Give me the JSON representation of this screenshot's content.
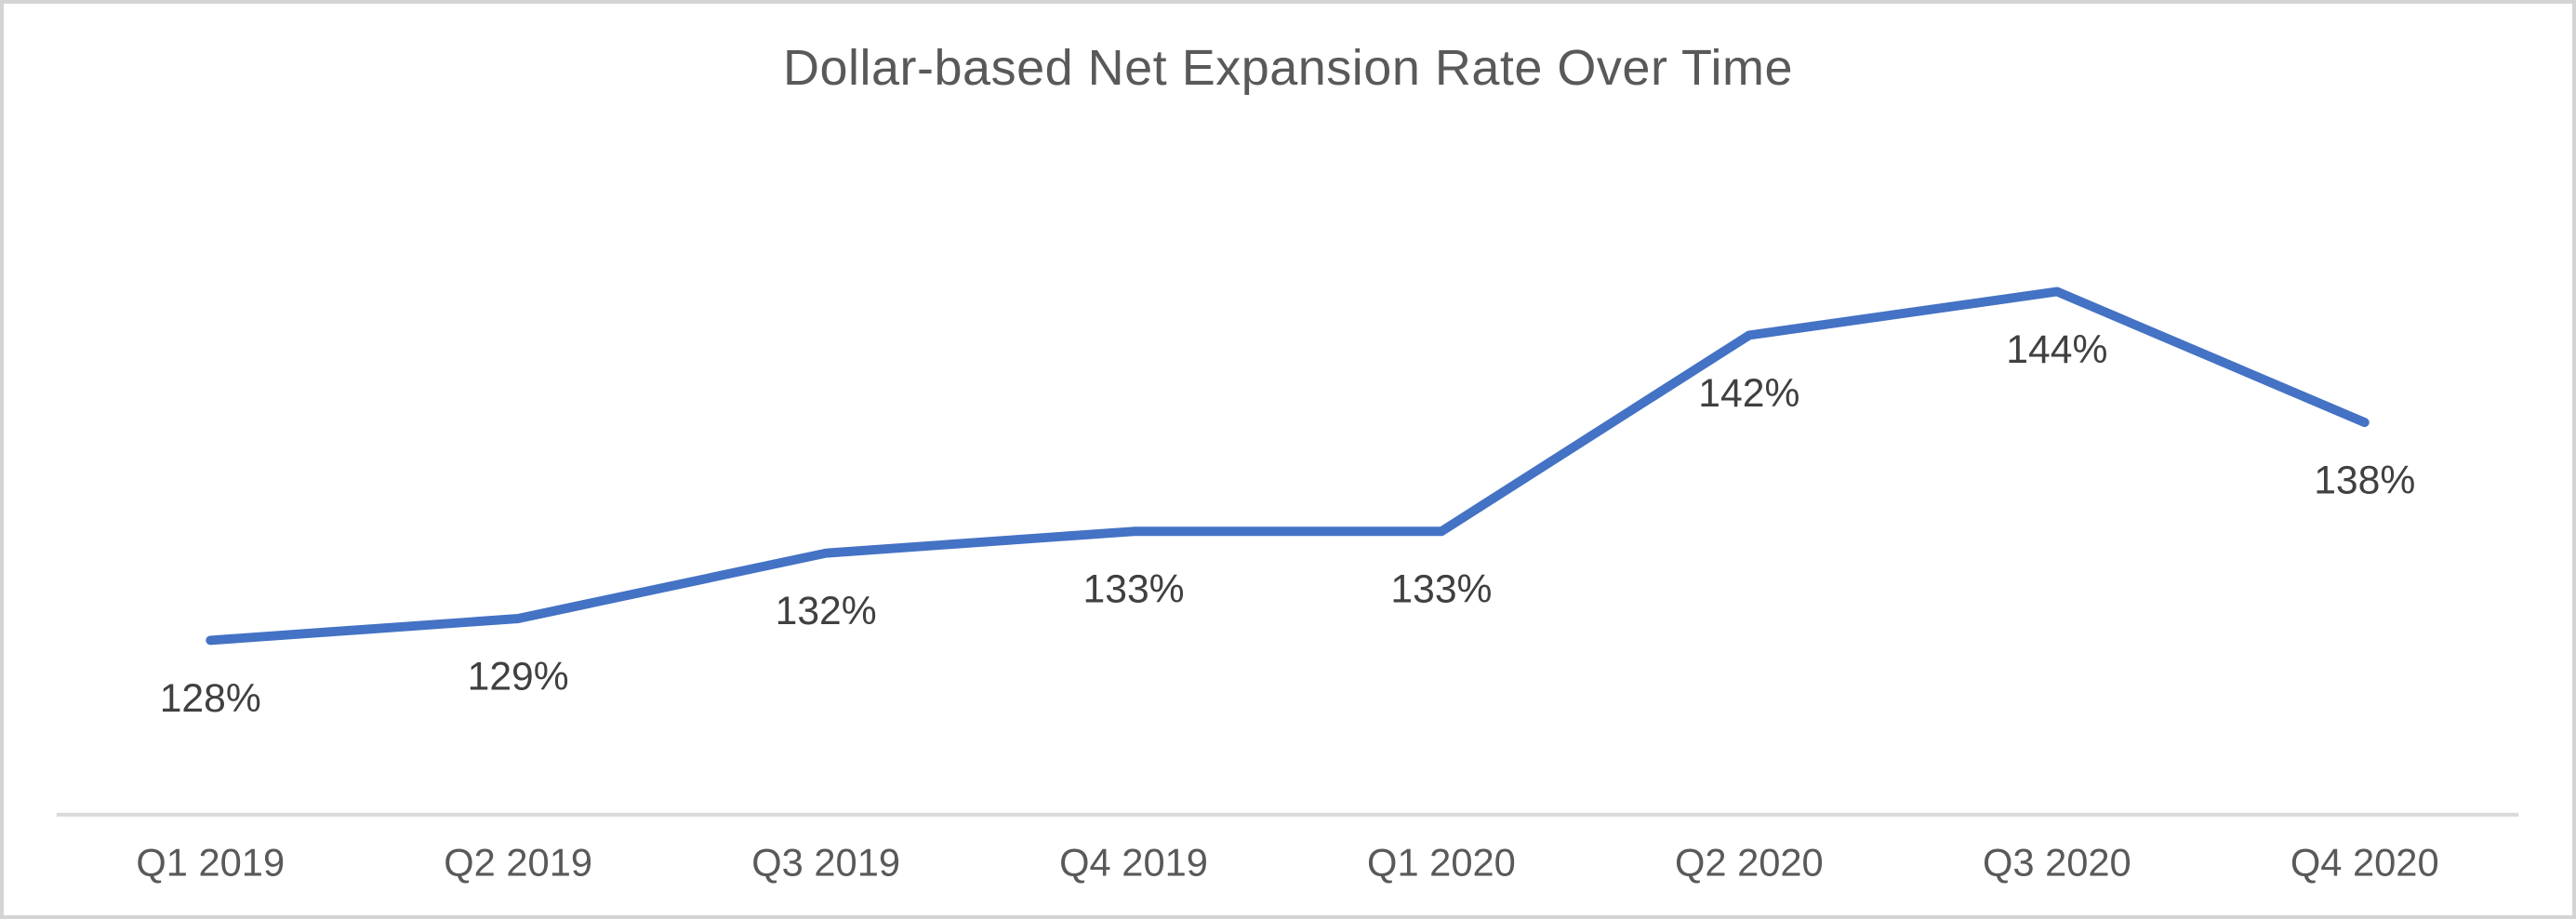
{
  "title": "Dollar-based Net Expansion Rate Over Time",
  "colors": {
    "line": "#4472C4",
    "title_text": "#595959",
    "data_label_text": "#404040",
    "axis_label_text": "#595959",
    "axis_line": "#D9D9D9",
    "frame_border": "#D4D4D4",
    "background": "#FFFFFF"
  },
  "chart_data": {
    "type": "line",
    "title": "Dollar-based Net Expansion Rate Over Time",
    "categories": [
      "Q1 2019",
      "Q2 2019",
      "Q3 2019",
      "Q4 2019",
      "Q1 2020",
      "Q2 2020",
      "Q3 2020",
      "Q4 2020"
    ],
    "series": [
      {
        "name": "Dollar-based Net Expansion Rate",
        "values": [
          128,
          129,
          132,
          133,
          133,
          142,
          144,
          138
        ],
        "data_labels": [
          "128%",
          "129%",
          "132%",
          "133%",
          "133%",
          "142%",
          "144%",
          "138%"
        ]
      }
    ],
    "xlabel": "",
    "ylabel": "",
    "ylim": [
      120,
      155
    ],
    "y_axis_visible": false,
    "gridlines": false,
    "legend": "none",
    "data_label_position": "below"
  }
}
